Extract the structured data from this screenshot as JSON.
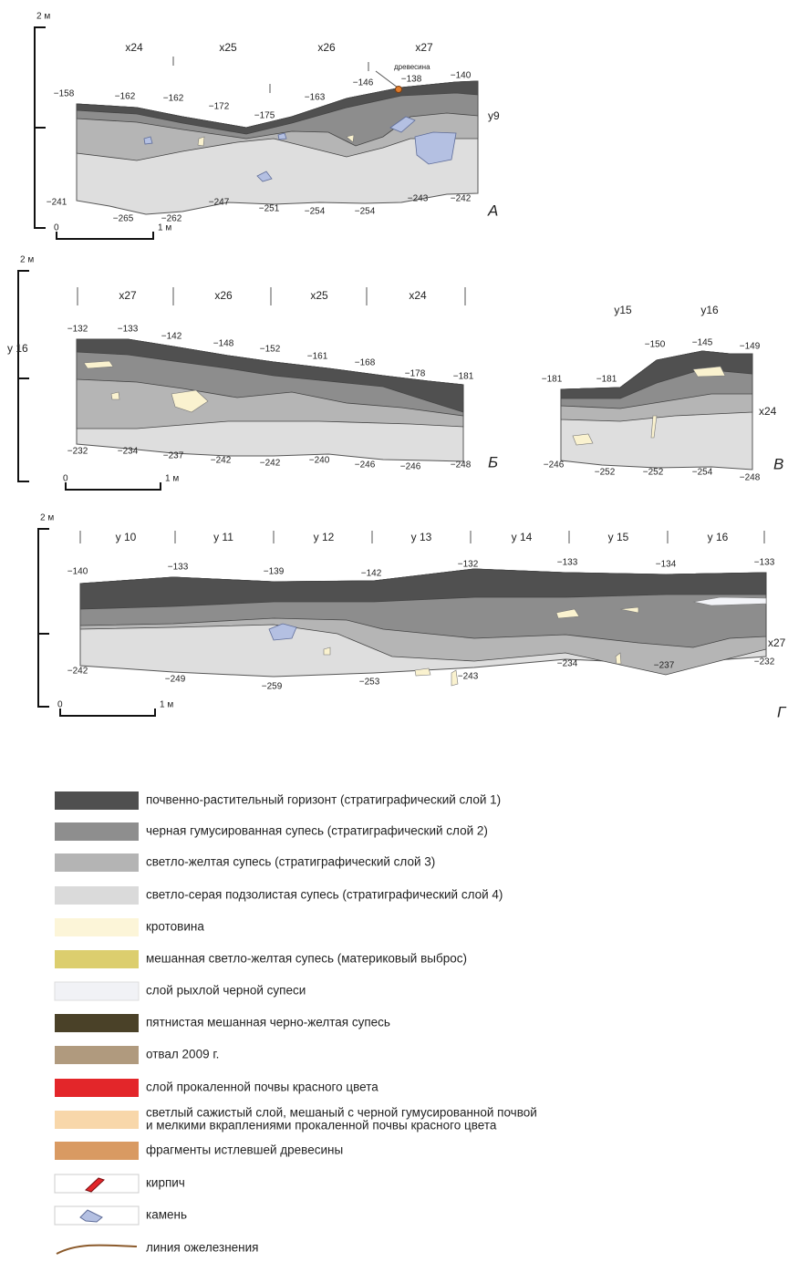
{
  "panels": [
    {
      "letter": "А",
      "scale_top": "2 м",
      "scale_zero": "0",
      "scale_one": "1 м",
      "squares": [
        "х24",
        "х25",
        "х26",
        "х27"
      ],
      "side_label": "у9",
      "note": "древесина",
      "top_marks": [
        "−158",
        "−162",
        "−162",
        "−172",
        "−175",
        "−163",
        "−146",
        "−138",
        "−140"
      ],
      "bottom_marks": [
        "−241",
        "−265",
        "−262",
        "−247",
        "−251",
        "−254",
        "−254",
        "−243",
        "−242"
      ]
    },
    {
      "letter": "Б",
      "scale_top": "2 м",
      "scale_zero": "0",
      "scale_one": "1 м",
      "squares": [
        "х27",
        "х26",
        "х25",
        "х24"
      ],
      "side_label": "у 16",
      "top_marks": [
        "−132",
        "−133",
        "−142",
        "−148",
        "−152",
        "−161",
        "−168",
        "−178",
        "−181"
      ],
      "bottom_marks": [
        "−232",
        "−234",
        "−237",
        "−242",
        "−242",
        "−240",
        "−246",
        "−246",
        "−248"
      ]
    },
    {
      "letter": "В",
      "squares": [
        "у15",
        "у16"
      ],
      "side_label": "х24",
      "top_marks": [
        "−181",
        "−181",
        "−150",
        "−145",
        "−149"
      ],
      "bottom_marks": [
        "−246",
        "−252",
        "−252",
        "−254",
        "−248"
      ]
    },
    {
      "letter": "Г",
      "scale_top": "2 м",
      "scale_zero": "0",
      "scale_one": "1 м",
      "squares": [
        "у 10",
        "у 11",
        "у 12",
        "у 13",
        "у 14",
        "у 15",
        "у 16"
      ],
      "side_label": "х27",
      "top_marks": [
        "−140",
        "−133",
        "−139",
        "−142",
        "−132",
        "−133",
        "−134",
        "−133"
      ],
      "bottom_marks": [
        "−242",
        "−249",
        "−259",
        "−253",
        "−243",
        "−234",
        "−237",
        "−232"
      ]
    }
  ],
  "legend": [
    "почвенно-растительный горизонт (стратиграфический слой 1)",
    "черная гумусированная супесь (стратиграфический слой 2)",
    "светло-желтая супесь (стратиграфический слой 3)",
    "светло-серая подзолистая супесь (стратиграфический слой 4)",
    "кротовина",
    "мешанная светло-желтая супесь (материковый выброс)",
    "слой рыхлой черной супеси",
    "пятнистая мешанная черно-желтая супесь",
    "отвал 2009 г.",
    "слой прокаленной почвы красного цвета",
    [
      "светлый сажистый слой, мешаный с черной гумусированной почвой",
      "и мелкими вкраплениями прокаленной почвы красного цвета"
    ],
    "фрагменты истлевшей древесины",
    "кирпич",
    "камень",
    "линия ожелезнения"
  ]
}
